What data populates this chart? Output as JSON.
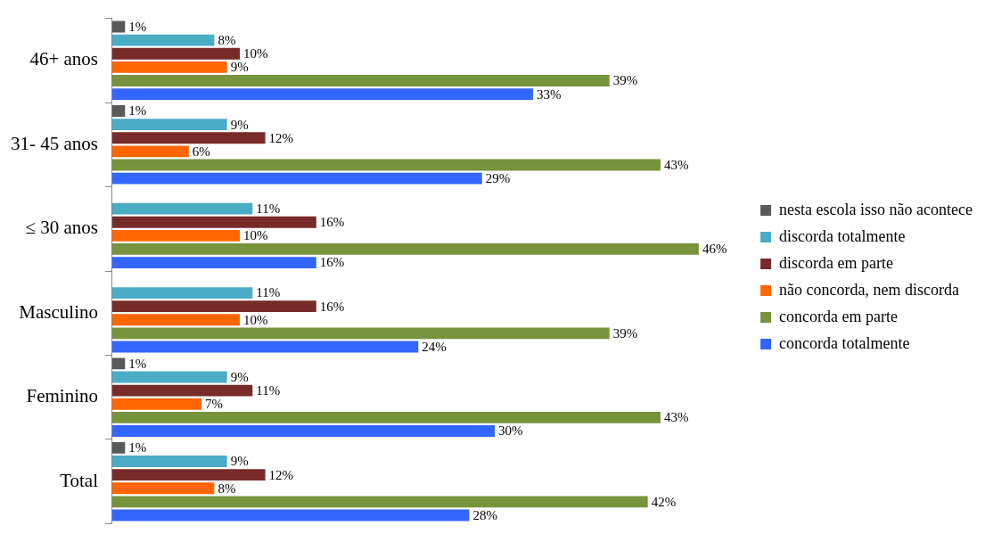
{
  "chart_data": {
    "type": "bar",
    "orientation": "horizontal",
    "categories": [
      "46+ anos",
      "31- 45 anos",
      "≤ 30 anos",
      "Masculino",
      "Feminino",
      "Total"
    ],
    "series": [
      {
        "name": "nesta escola isso não acontece",
        "color": "#595959",
        "values": [
          1,
          1,
          null,
          null,
          1,
          1
        ],
        "value_labels": [
          "1%",
          "1%",
          null,
          null,
          "1%",
          "1%"
        ]
      },
      {
        "name": "discorda totalmente",
        "color": "#4bacc6",
        "values": [
          8,
          9,
          11,
          11,
          9,
          9
        ],
        "value_labels": [
          "8%",
          "9%",
          "11%",
          "11%",
          "9%",
          "9%"
        ]
      },
      {
        "name": "discorda em parte",
        "color": "#772c2a",
        "values": [
          10,
          12,
          16,
          16,
          11,
          12
        ],
        "value_labels": [
          "10%",
          "12%",
          "16%",
          "16%",
          "11%",
          "12%"
        ]
      },
      {
        "name": "não concorda, nem discorda",
        "color": "#ff6600",
        "values": [
          9,
          6,
          10,
          10,
          7,
          8
        ],
        "value_labels": [
          "9%",
          "6%",
          "10%",
          "10%",
          "7%",
          "8%"
        ]
      },
      {
        "name": "concorda em parte",
        "color": "#77933c",
        "values": [
          39,
          43,
          46,
          39,
          43,
          42
        ],
        "value_labels": [
          "39%",
          "43%",
          "46%",
          "39%",
          "43%",
          "42%"
        ]
      },
      {
        "name": "concorda totalmente",
        "color": "#3366ff",
        "values": [
          33,
          29,
          16,
          24,
          30,
          28
        ],
        "value_labels": [
          "33%",
          "29%",
          "16%",
          "24%",
          "30%",
          "28%"
        ]
      }
    ],
    "legend": "right"
  }
}
